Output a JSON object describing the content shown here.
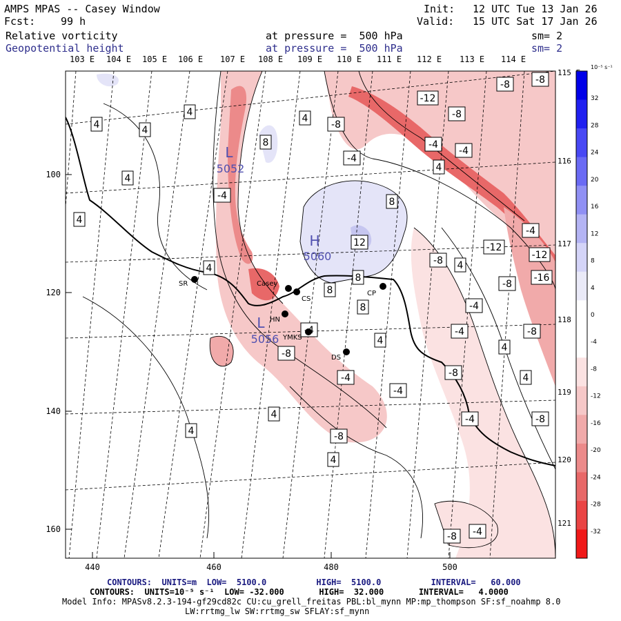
{
  "header": {
    "title": "AMPS MPAS -- Casey Window",
    "fcst_label": "Fcst:",
    "fcst_value": "99 h",
    "init_label": "Init:",
    "init_value": "12 UTC Tue 13 Jan 26",
    "valid_label": "Valid:",
    "valid_value": "15 UTC Sat 17 Jan 26",
    "field1": "Relative vorticity",
    "field2": "Geopotential height",
    "level1": "at pressure =  500 hPa",
    "level2": "at pressure =  500 hPa",
    "sm1": "sm= 2",
    "sm2": "sm= 2"
  },
  "lon_top": [
    "103 E",
    "104 E",
    "105 E",
    "106 E",
    "107 E",
    "108 E",
    "109 E",
    "110 E",
    "111 E",
    "112 E",
    "113 E",
    "114 E"
  ],
  "lat_right": [
    "115 E",
    "116 E",
    "117 E",
    "118 E",
    "119 E",
    "120 E",
    "121 E"
  ],
  "x_ticks": [
    "440",
    "460",
    "480",
    "500"
  ],
  "y_ticks": [
    "100",
    "120",
    "140",
    "160"
  ],
  "colorbar": {
    "unit": "10⁻⁵ s⁻¹",
    "labels": [
      "32",
      "28",
      "24",
      "20",
      "16",
      "12",
      "8",
      "4",
      "0",
      "-4",
      "-8",
      "-12",
      "-16",
      "-20",
      "-24",
      "-28",
      "-32"
    ],
    "colors": [
      "#0000e8",
      "#2020f0",
      "#4848f4",
      "#6a6af4",
      "#9090f4",
      "#b4b4f4",
      "#d4d4f8",
      "#eaeaf8",
      "#ffffff",
      "#ffffff",
      "#fbe2e2",
      "#f6c8c8",
      "#f1aaaa",
      "#ec8a8a",
      "#e86868",
      "#ea4444",
      "#f01818"
    ]
  },
  "stations": [
    {
      "name": "SR"
    },
    {
      "name": "Casey"
    },
    {
      "name": "CS"
    },
    {
      "name": "HN"
    },
    {
      "name": "YMKS"
    },
    {
      "name": "DS"
    },
    {
      "name": "CP"
    }
  ],
  "centers": [
    {
      "letter": "L",
      "value": "5052"
    },
    {
      "letter": "H",
      "value": "5060"
    },
    {
      "letter": "L",
      "value": "5056"
    }
  ],
  "contour_labels": [
    "4",
    "4",
    "4",
    "4",
    "4",
    "-4",
    "4",
    "8",
    "4",
    "-8",
    "-4",
    "-12",
    "-8",
    "-8",
    "-8",
    "-4",
    "4",
    "-4",
    "8",
    "12",
    "-4",
    "-12",
    "-8",
    "4",
    "8",
    "-12",
    "-16",
    "-8",
    "8",
    "-4",
    "8",
    "-4",
    "-8",
    "-4",
    "-8",
    "-4",
    "4",
    "-8",
    "4",
    "-4",
    "4",
    "4",
    "-8",
    "4",
    "-4",
    "-8",
    "4",
    "-8",
    "-4"
  ],
  "footer": {
    "line1": "CONTOURS:  UNITS=m  LOW=  5100.0          HIGH=  5100.0          INTERVAL=   60.000",
    "line2": "CONTOURS:  UNITS=10⁻⁵ s⁻¹  LOW= -32.000       HIGH=  32.000       INTERVAL=   4.0000",
    "line3": "Model Info: MPASv8.2.3-194-gf29cd82c CU:cu_grell_freitas PBL:bl_mynn MP:mp_thompson SF:sf_noahmp 8.0",
    "line4": "LW:rrtmg_lw SW:rrtmg_sw SFLAY:sf_mynn"
  }
}
